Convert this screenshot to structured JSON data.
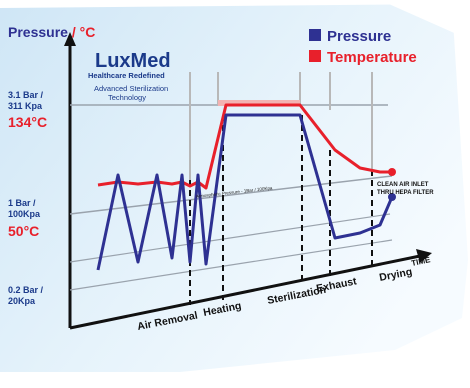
{
  "title_prefix": "Pressure",
  "title_unit": "°C",
  "logo": {
    "brand": "LuxMed",
    "tagline": "Healthcare Redefined",
    "subtitle_line1": "Advanced Sterilization",
    "subtitle_line2": "Technology"
  },
  "legend": [
    {
      "label": "Pressure",
      "color": "#2e3192"
    },
    {
      "label": "Temperature",
      "color": "#e8202b"
    }
  ],
  "y_labels": {
    "top_bar": "3.1 Bar /",
    "top_kpa": "311 Kpa",
    "top_temp": "134°C",
    "mid_bar": "1 Bar /",
    "mid_kpa": "100Kpa",
    "mid_temp": "50°C",
    "low_bar": "0.2 Bar /",
    "low_kpa": "20Kpa"
  },
  "atmospheric_label": "Atmospheric Pressure - 1Bar / 100Kpa",
  "clean_air_label": "CLEAN AIR INLET",
  "hepa_label": "THRU HEPA FILTER",
  "time_label": "TIME",
  "phases": [
    "Air Removal",
    "Heating",
    "Sterilization",
    "Exhaust",
    "Drying"
  ],
  "chart_data": {
    "type": "line",
    "title": "",
    "xlabel": "TIME",
    "ylabel": "Pressure / °C",
    "phases": [
      "Air Removal",
      "Heating",
      "Sterilization",
      "Exhaust",
      "Drying"
    ],
    "series": [
      {
        "name": "Pressure",
        "color": "#2e3192",
        "unit": "Bar",
        "points": [
          [
            0,
            0.5
          ],
          [
            1,
            1.6
          ],
          [
            2,
            0.5
          ],
          [
            3,
            1.6
          ],
          [
            4,
            0.5
          ],
          [
            5,
            1.6
          ],
          [
            6,
            0.5
          ],
          [
            7,
            1.6
          ],
          [
            8,
            0.5
          ],
          [
            9,
            3.1
          ],
          [
            10,
            3.1
          ],
          [
            11,
            0.9
          ],
          [
            12,
            1.0
          ],
          [
            13,
            1.1
          ],
          [
            14,
            1.3
          ]
        ]
      },
      {
        "name": "Temperature",
        "color": "#e8202b",
        "unit": "°C",
        "points": [
          [
            0,
            70
          ],
          [
            1,
            72
          ],
          [
            2,
            70
          ],
          [
            3,
            72
          ],
          [
            4,
            70
          ],
          [
            5,
            72
          ],
          [
            6,
            70
          ],
          [
            7,
            72
          ],
          [
            8,
            70
          ],
          [
            9,
            134
          ],
          [
            10,
            134
          ],
          [
            11,
            134
          ],
          [
            12,
            110
          ],
          [
            13,
            98
          ],
          [
            14,
            96
          ]
        ]
      }
    ],
    "y_ticks": [
      "0.2 Bar / 20Kpa",
      "1 Bar / 100Kpa",
      "3.1 Bar / 311 Kpa"
    ],
    "temp_ticks": [
      "50°C",
      "134°C"
    ],
    "legend_position": "top-right"
  }
}
